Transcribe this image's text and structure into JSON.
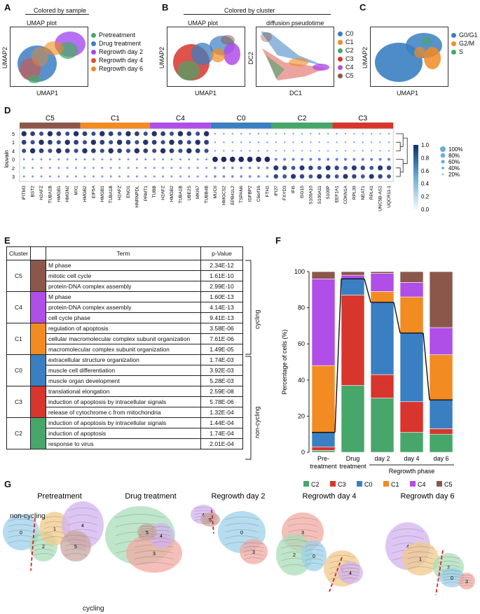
{
  "panels": {
    "A": {
      "letter": "A",
      "header": "Colored by sample",
      "plot_title": "UMAP plot",
      "xlabel": "UMAP1",
      "ylabel": "UMAP2",
      "legend": [
        {
          "label": "Pretreatment",
          "color": "#4aa86a"
        },
        {
          "label": "Drug treatment",
          "color": "#3c7ec4"
        },
        {
          "label": "Regrowth day 2",
          "color": "#a54cf0"
        },
        {
          "label": "Regrowth day 4",
          "color": "#e64b2f"
        },
        {
          "label": "Regrowth day 6",
          "color": "#f08a22"
        }
      ]
    },
    "B": {
      "letter": "B",
      "header": "Colored by cluster",
      "plot_title_1": "UMAP plot",
      "plot_title_2": "diffusion pseudotime",
      "xlabel_1": "UMAP1",
      "ylabel_1": "UMAP2",
      "xlabel_2": "DC1",
      "ylabel_2": "DC2",
      "legend": [
        {
          "label": "C0",
          "color": "#3a7fc1"
        },
        {
          "label": "C1",
          "color": "#f28b22"
        },
        {
          "label": "C2",
          "color": "#47a66a"
        },
        {
          "label": "C3",
          "color": "#d8352c"
        },
        {
          "label": "C4",
          "color": "#b04ee8"
        },
        {
          "label": "C5",
          "color": "#8c574b"
        }
      ]
    },
    "C": {
      "letter": "C",
      "xlabel": "UMAP1",
      "ylabel": "UMAP2",
      "legend": [
        {
          "label": "G0/G1",
          "color": "#3a7fc1"
        },
        {
          "label": "G2/M",
          "color": "#f28b22"
        },
        {
          "label": "S",
          "color": "#47a66a"
        }
      ]
    },
    "D": {
      "letter": "D",
      "ylabel": "louvain",
      "clusters": [
        {
          "label": "C5",
          "color": "#8c574b"
        },
        {
          "label": "C1",
          "color": "#f28b22"
        },
        {
          "label": "C4",
          "color": "#b04ee8"
        },
        {
          "label": "C0",
          "color": "#3a7fc1"
        },
        {
          "label": "C2",
          "color": "#47a66a"
        },
        {
          "label": "C3",
          "color": "#d8352c"
        }
      ],
      "rows": [
        "5",
        "1",
        "4",
        "0",
        "2",
        "3"
      ],
      "genes": [
        "IFITM3",
        "BST2",
        "H2AFZ",
        "TUBA1B",
        "HMGB1",
        "HMGN2",
        "MX1",
        "HMGB2",
        "EIF5A",
        "HMGB1",
        "TUBA1B",
        "H2AFZ",
        "ENO1",
        "HNRNPDL",
        "PRMT1",
        "TUBB",
        "H2AFZ",
        "HMGB2",
        "TUBA1B",
        "UBE2S",
        "MKI67",
        "TUBB4B",
        "MUC6",
        "HMGCS2",
        "EPB41L2",
        "TSPAN6",
        "IGFBP2",
        "C6orf16",
        "FTH1",
        "IFI27",
        "FXYD3",
        "IFI6",
        "ISG15",
        "S100A10",
        "S100A11",
        "S100P",
        "EEF1A1",
        "CDKN1A",
        "RPL39",
        "NEAT1",
        "RPL41",
        "UNC5B-AS1",
        "UQCR11-1"
      ],
      "colorbar_ticks": [
        "1.0",
        "0.8",
        "0.6",
        "0.4",
        "0.2",
        "0.0"
      ],
      "size_legend": [
        "100%",
        "80%",
        "60%",
        "40%",
        "20%"
      ]
    },
    "E": {
      "letter": "E",
      "col_cluster": "Cluster",
      "col_term": "Term",
      "col_pvalue": "p-Value",
      "group_cycling": "cycling",
      "group_noncycling": "non-cycling",
      "groups": [
        {
          "cluster": "C5",
          "color": "#8c574b",
          "rows": [
            {
              "term": "M phase",
              "p": "2.34E-12"
            },
            {
              "term": "mitotic cell cycle",
              "p": "1.61E-10"
            },
            {
              "term": "protein-DNA complex assembly",
              "p": "2.99E-10"
            }
          ]
        },
        {
          "cluster": "C4",
          "color": "#b04ee8",
          "rows": [
            {
              "term": "M phase",
              "p": "1.60E-13"
            },
            {
              "term": "protein-DNA complex assembly",
              "p": "4.14E-13"
            },
            {
              "term": "cell cycle phase",
              "p": "9.41E-13"
            }
          ]
        },
        {
          "cluster": "C1",
          "color": "#f28b22",
          "rows": [
            {
              "term": "regulation of apoptosis",
              "p": "3.58E-06"
            },
            {
              "term": "cellular macromolecular complex subunit organization",
              "p": "7.61E-06"
            },
            {
              "term": "macromolecular complex subunit organization",
              "p": "1.49E-05"
            }
          ]
        },
        {
          "cluster": "C0",
          "color": "#3a7fc1",
          "rows": [
            {
              "term": "extracellular structure organization",
              "p": "1.74E-03"
            },
            {
              "term": "muscle cell differentiation",
              "p": "3.92E-03"
            },
            {
              "term": "muscle organ development",
              "p": "5.28E-03"
            }
          ]
        },
        {
          "cluster": "C3",
          "color": "#d8352c",
          "rows": [
            {
              "term": "translational elongation",
              "p": "2.59E-08"
            },
            {
              "term": "induction of apoptosis by intracellular signals",
              "p": "5.78E-06"
            },
            {
              "term": "release of cytochrome c from mitochondria",
              "p": "1.32E-04"
            }
          ]
        },
        {
          "cluster": "C2",
          "color": "#47a66a",
          "rows": [
            {
              "term": "induction of apoptosis by intracellular signals",
              "p": "1.44E-04"
            },
            {
              "term": "induction of apoptosis",
              "p": "1.74E-04"
            },
            {
              "term": "response to virus",
              "p": "2.01E-04"
            }
          ]
        }
      ]
    },
    "F": {
      "letter": "F",
      "phase_label": "Regrowth phase"
    },
    "G": {
      "letter": "G",
      "titles": [
        "Pretreatment",
        "Drug treatment",
        "Regrowth day 2",
        "Regrowth day 4",
        "Regrowth day 6"
      ],
      "noncycling": "non-cycling",
      "cycling": "cycling"
    }
  },
  "chart_data": {
    "type": "bar",
    "stacked": true,
    "ylabel": "Percentage of cells (%)",
    "ylim": [
      0,
      100
    ],
    "yticks": [
      "0",
      "20",
      "40",
      "60",
      "80",
      "100"
    ],
    "categories": [
      "Pre-\ntreatment",
      "Drug\ntreatment",
      "day 2",
      "day 4",
      "day 6"
    ],
    "series": [
      {
        "name": "C2",
        "color": "#47a66a",
        "values": [
          1,
          37,
          30,
          11,
          10
        ]
      },
      {
        "name": "C3",
        "color": "#d8352c",
        "values": [
          2,
          50,
          13,
          17,
          3
        ]
      },
      {
        "name": "C0",
        "color": "#3a7fc1",
        "values": [
          8,
          9,
          40,
          38,
          16
        ]
      },
      {
        "name": "C1",
        "color": "#f28b22",
        "values": [
          37,
          0,
          6,
          20,
          25
        ]
      },
      {
        "name": "C4",
        "color": "#b04ee8",
        "values": [
          48,
          2,
          10,
          8,
          15
        ]
      },
      {
        "name": "C5",
        "color": "#8c574b",
        "values": [
          4,
          2,
          1,
          6,
          31
        ]
      }
    ]
  }
}
